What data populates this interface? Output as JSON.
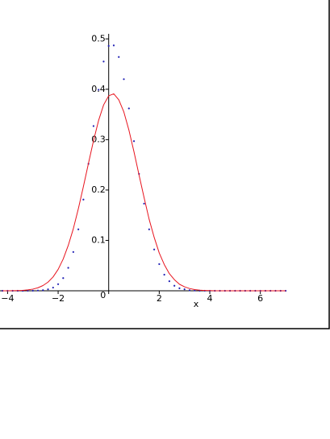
{
  "chart_data": {
    "type": "line",
    "x_label": "x",
    "x": [
      -4.2,
      -4,
      -3.8,
      -3.6,
      -3.4,
      -3.2,
      -3,
      -2.8,
      -2.6,
      -2.4,
      -2.2,
      -2,
      -1.8,
      -1.6,
      -1.4,
      -1.2,
      -1,
      -0.8,
      -0.6,
      -0.4,
      -0.2,
      0,
      0.2,
      0.4,
      0.6,
      0.8,
      1,
      1.2,
      1.4,
      1.6,
      1.8,
      2,
      2.2,
      2.4,
      2.6,
      2.8,
      3,
      3.2,
      3.4,
      3.6,
      3.8,
      4,
      4.2,
      4.4,
      4.6,
      4.8,
      5,
      5.2,
      5.4,
      5.6,
      5.8,
      6,
      6.2,
      6.4,
      6.6,
      6.8,
      7
    ],
    "series": [
      {
        "color": "#1f1fb4",
        "style": "points",
        "values": [
          0,
          0,
          0,
          0,
          0,
          0.0001,
          0.0002,
          0.0005,
          0.0012,
          0.0029,
          0.0063,
          0.0131,
          0.0252,
          0.0456,
          0.077,
          0.122,
          0.181,
          0.252,
          0.327,
          0.399,
          0.455,
          0.486,
          0.487,
          0.464,
          0.42,
          0.362,
          0.297,
          0.232,
          0.173,
          0.122,
          0.082,
          0.053,
          0.032,
          0.019,
          0.01,
          0.005,
          0.003,
          0.001,
          0.0005,
          0.0002,
          0.0001,
          0,
          0,
          0,
          0,
          0,
          0,
          0,
          0,
          0,
          0,
          0,
          0,
          0,
          0,
          0,
          0
        ]
      },
      {
        "color": "#e8141e",
        "style": "line",
        "values": [
          0,
          0.0001,
          0.0002,
          0.0005,
          0.0009,
          0.0018,
          0.0033,
          0.006,
          0.0104,
          0.0172,
          0.0275,
          0.0425,
          0.063,
          0.09,
          0.123,
          0.163,
          0.207,
          0.253,
          0.298,
          0.338,
          0.369,
          0.387,
          0.391,
          0.379,
          0.355,
          0.319,
          0.276,
          0.23,
          0.185,
          0.142,
          0.106,
          0.075,
          0.052,
          0.034,
          0.022,
          0.013,
          0.0079,
          0.0045,
          0.0024,
          0.0013,
          0.0006,
          0.0003,
          0.0001,
          0.0001,
          0,
          0,
          0,
          0,
          0,
          0,
          0,
          0,
          0,
          0,
          0,
          0,
          0
        ]
      }
    ],
    "xlim": [
      -4.3,
      7
    ],
    "ylim": [
      0,
      0.51
    ],
    "xticks": [
      {
        "value": -4,
        "label": "−4"
      },
      {
        "value": -2,
        "label": "−2"
      },
      0,
      2,
      4,
      6
    ],
    "yticks": [
      0.1,
      0.2,
      0.3,
      0.4,
      0.5
    ],
    "grid": false
  }
}
